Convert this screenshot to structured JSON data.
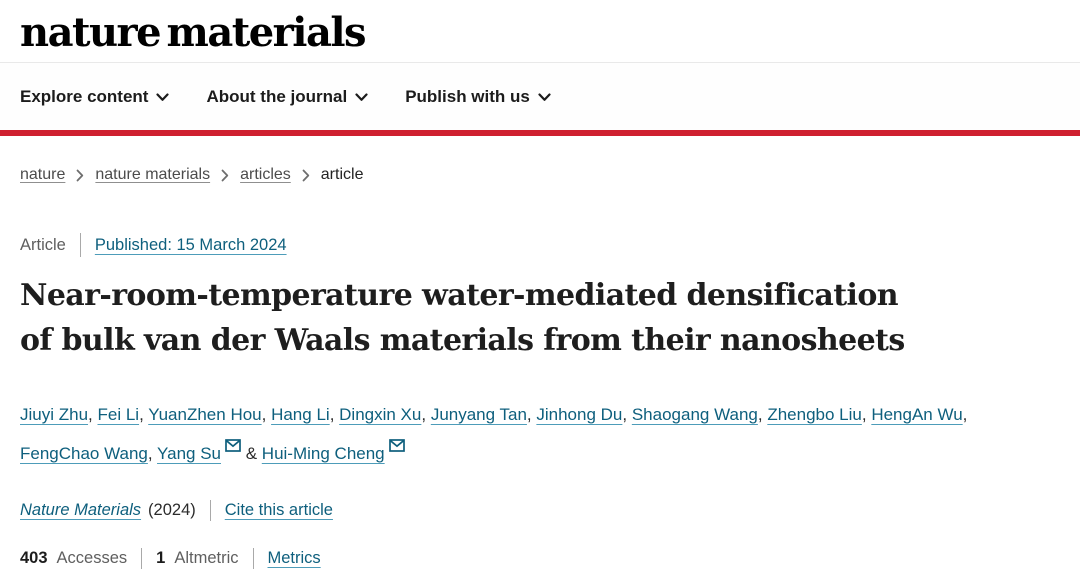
{
  "header": {
    "logo": "nature materials",
    "nav": [
      {
        "label": "Explore content"
      },
      {
        "label": "About the journal"
      },
      {
        "label": "Publish with us"
      }
    ]
  },
  "breadcrumb": {
    "items": [
      {
        "label": "nature"
      },
      {
        "label": "nature materials"
      },
      {
        "label": "articles"
      },
      {
        "label": "article"
      }
    ]
  },
  "article": {
    "type_label": "Article",
    "published": "Published: 15 March 2024",
    "title_lines": [
      "Near-room-temperature water-mediated densification",
      "of bulk van der Waals materials from their nanosheets"
    ],
    "authors": [
      {
        "name": "Jiuyi Zhu"
      },
      {
        "name": "Fei Li"
      },
      {
        "name": "YuanZhen Hou"
      },
      {
        "name": "Hang Li"
      },
      {
        "name": "Dingxin Xu"
      },
      {
        "name": "Junyang Tan"
      },
      {
        "name": "Jinhong Du"
      },
      {
        "name": "Shaogang Wang"
      },
      {
        "name": "Zhengbo Liu"
      },
      {
        "name": "HengAn Wu"
      },
      {
        "name": "FengChao Wang"
      },
      {
        "name": "Yang Su",
        "email": true
      },
      {
        "name": "Hui-Ming Cheng",
        "email": true,
        "amp_before": true
      }
    ],
    "journal_link_label": "Nature Materials",
    "journal_year": "(2024)",
    "cite_label": "Cite this article",
    "metrics": {
      "accesses_count": "403",
      "accesses_label": "Accesses",
      "altmetric_count": "1",
      "altmetric_label": "Altmetric",
      "metrics_label": "Metrics"
    }
  },
  "icons": {
    "nav_dropdown": "chevron-down-icon",
    "breadcrumb_separator": "chevron-right-icon",
    "corresponding_author": "envelope-icon"
  },
  "colors": {
    "brand_red": "#cf2030",
    "link_teal": "#0e5f7d",
    "link_underline": "#4d9cb9",
    "muted_gray": "#5f5f5f"
  }
}
